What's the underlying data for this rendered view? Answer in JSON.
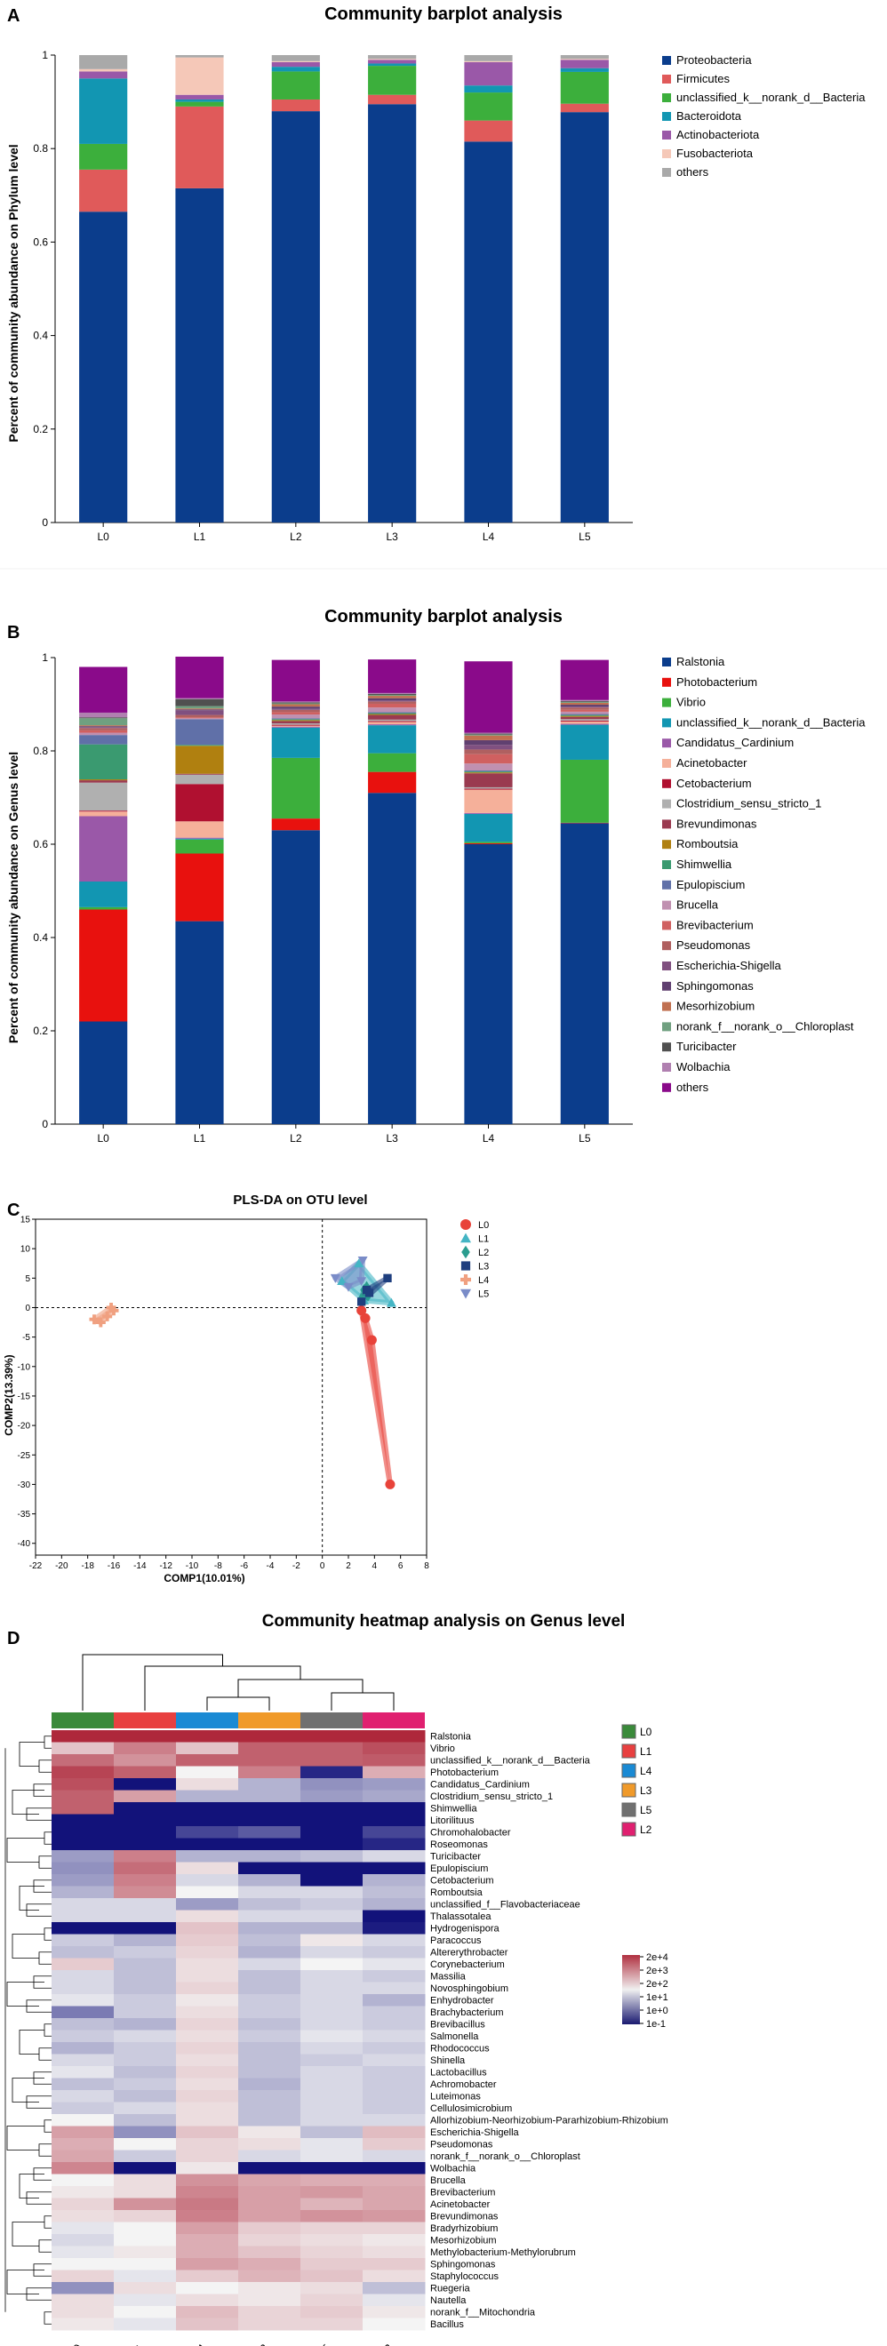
{
  "chart_data": [
    {
      "panel": "A",
      "type": "bar",
      "stacked": true,
      "title": "Community barplot analysis",
      "xlabel": "",
      "ylabel": "Percent of community abundance on Phylum level",
      "ylim": [
        0,
        1
      ],
      "yticks": [
        "0",
        "0.2",
        "0.4",
        "0.6",
        "0.8",
        "1"
      ],
      "categories": [
        "L0",
        "L1",
        "L2",
        "L3",
        "L4",
        "L5"
      ],
      "series": [
        {
          "name": "Proteobacteria",
          "color": "#0b3d8c",
          "values": [
            0.665,
            0.715,
            0.88,
            0.895,
            0.815,
            0.878
          ]
        },
        {
          "name": "Firmicutes",
          "color": "#e05a5a",
          "values": [
            0.09,
            0.175,
            0.025,
            0.02,
            0.045,
            0.018
          ]
        },
        {
          "name": "unclassified_k__norank_d__Bacteria",
          "color": "#3caf3c",
          "values": [
            0.055,
            0.01,
            0.06,
            0.062,
            0.06,
            0.068
          ]
        },
        {
          "name": "Bacteroidota",
          "color": "#1296b2",
          "values": [
            0.14,
            0.005,
            0.01,
            0.005,
            0.015,
            0.008
          ]
        },
        {
          "name": "Actinobacteriota",
          "color": "#9a58a8",
          "values": [
            0.015,
            0.01,
            0.01,
            0.008,
            0.05,
            0.018
          ]
        },
        {
          "name": "Fusobacteriota",
          "color": "#f5c8b8",
          "values": [
            0.005,
            0.08,
            0.002,
            0.002,
            0.002,
            0.002
          ]
        },
        {
          "name": "others",
          "color": "#a9a9a9",
          "values": [
            0.03,
            0.005,
            0.013,
            0.008,
            0.013,
            0.008
          ]
        }
      ]
    },
    {
      "panel": "B",
      "type": "bar",
      "stacked": true,
      "title": "Community barplot analysis",
      "xlabel": "",
      "ylabel": "Percent of community abundance on Genus level",
      "ylim": [
        0,
        1
      ],
      "yticks": [
        "0",
        "0.2",
        "0.4",
        "0.6",
        "0.8",
        "1"
      ],
      "categories": [
        "L0",
        "L1",
        "L2",
        "L3",
        "L4",
        "L5"
      ],
      "series": [
        {
          "name": "Ralstonia",
          "color": "#0b3d8c",
          "values": [
            0.22,
            0.435,
            0.63,
            0.71,
            0.6,
            0.645
          ]
        },
        {
          "name": "Photobacterium",
          "color": "#e8110e",
          "values": [
            0.24,
            0.145,
            0.025,
            0.045,
            0.002,
            0.001
          ]
        },
        {
          "name": "Vibrio",
          "color": "#3caf3c",
          "values": [
            0.005,
            0.03,
            0.13,
            0.04,
            0.003,
            0.135
          ]
        },
        {
          "name": "unclassified_k__norank_d__Bacteria",
          "color": "#1296b2",
          "values": [
            0.055,
            0.002,
            0.065,
            0.06,
            0.06,
            0.075
          ]
        },
        {
          "name": "Candidatus_Cardinium",
          "color": "#9a58a8",
          "values": [
            0.14,
            0.002,
            0.002,
            0.002,
            0.002,
            0.002
          ]
        },
        {
          "name": "Acinetobacter",
          "color": "#f5b09a",
          "values": [
            0.01,
            0.035,
            0.002,
            0.005,
            0.05,
            0.005
          ]
        },
        {
          "name": "Cetobacterium",
          "color": "#b01030",
          "values": [
            0.002,
            0.08,
            0.002,
            0.002,
            0.002,
            0.002
          ]
        },
        {
          "name": "Clostridium_sensu_stricto_1",
          "color": "#b0b0b0",
          "values": [
            0.06,
            0.02,
            0.003,
            0.003,
            0.003,
            0.003
          ]
        },
        {
          "name": "Brevundimonas",
          "color": "#9a3a50",
          "values": [
            0.005,
            0.002,
            0.005,
            0.01,
            0.03,
            0.005
          ]
        },
        {
          "name": "Romboutsia",
          "color": "#b08010",
          "values": [
            0.002,
            0.06,
            0.002,
            0.002,
            0.002,
            0.002
          ]
        },
        {
          "name": "Shimwellia",
          "color": "#3a9a70",
          "values": [
            0.075,
            0.002,
            0.002,
            0.002,
            0.002,
            0.002
          ]
        },
        {
          "name": "Epulopiscium",
          "color": "#6070a8",
          "values": [
            0.02,
            0.055,
            0.002,
            0.002,
            0.002,
            0.002
          ]
        },
        {
          "name": "Brucella",
          "color": "#c090b0",
          "values": [
            0.005,
            0.002,
            0.008,
            0.01,
            0.015,
            0.005
          ]
        },
        {
          "name": "Brevibacterium",
          "color": "#d06060",
          "values": [
            0.005,
            0.002,
            0.005,
            0.008,
            0.02,
            0.004
          ]
        },
        {
          "name": "Pseudomonas",
          "color": "#b06060",
          "values": [
            0.005,
            0.005,
            0.005,
            0.005,
            0.01,
            0.005
          ]
        },
        {
          "name": "Escherichia-Shigella",
          "color": "#805080",
          "values": [
            0.002,
            0.01,
            0.002,
            0.002,
            0.01,
            0.002
          ]
        },
        {
          "name": "Sphingomonas",
          "color": "#604070",
          "values": [
            0.002,
            0.002,
            0.005,
            0.005,
            0.01,
            0.004
          ]
        },
        {
          "name": "Mesorhizobium",
          "color": "#c07050",
          "values": [
            0.002,
            0.002,
            0.005,
            0.005,
            0.01,
            0.004
          ]
        },
        {
          "name": "norank_f__norank_o__Chloroplast",
          "color": "#70a080",
          "values": [
            0.015,
            0.005,
            0.002,
            0.002,
            0.002,
            0.002
          ]
        },
        {
          "name": "Turicibacter",
          "color": "#505050",
          "values": [
            0.002,
            0.015,
            0.002,
            0.002,
            0.002,
            0.002
          ]
        },
        {
          "name": "Wolbachia",
          "color": "#b080b0",
          "values": [
            0.01,
            0.002,
            0.002,
            0.002,
            0.002,
            0.002
          ]
        },
        {
          "name": "others",
          "color": "#8a0a8a",
          "values": [
            0.098,
            0.089,
            0.089,
            0.072,
            0.153,
            0.086
          ]
        }
      ]
    },
    {
      "panel": "C",
      "type": "scatter",
      "title": "PLS-DA on OTU level",
      "xlabel": "COMP1(10.01%)",
      "ylabel": "COMP2(13.39%)",
      "xlim": [
        -22,
        8
      ],
      "ylim": [
        -42,
        15
      ],
      "xticks": [
        -22,
        -20,
        -18,
        -16,
        -14,
        -12,
        -10,
        -8,
        -6,
        -4,
        -2,
        0,
        2,
        4,
        6,
        8
      ],
      "yticks": [
        15,
        10,
        5,
        0,
        -5,
        -10,
        -15,
        -20,
        -25,
        -30,
        -35,
        -40
      ],
      "series": [
        {
          "name": "L0",
          "color": "#e8433a",
          "marker": "circle",
          "points": [
            [
              3.0,
              -0.5
            ],
            [
              3.3,
              -1.8
            ],
            [
              3.8,
              -5.5
            ],
            [
              5.2,
              -30
            ]
          ]
        },
        {
          "name": "L1",
          "color": "#44b5c4",
          "marker": "triangle",
          "points": [
            [
              2.8,
              7.5
            ],
            [
              3.2,
              1.2
            ],
            [
              5.3,
              0.8
            ],
            [
              1.5,
              4.5
            ]
          ]
        },
        {
          "name": "L2",
          "color": "#2a9d8f",
          "marker": "diamond",
          "points": [
            [
              3.2,
              3.0
            ],
            [
              3.5,
              2.0
            ],
            [
              3.0,
              1.5
            ],
            [
              3.4,
              3.5
            ]
          ]
        },
        {
          "name": "L3",
          "color": "#1f3f7f",
          "marker": "square",
          "points": [
            [
              5.0,
              5.0
            ],
            [
              3.4,
              3.0
            ],
            [
              3.6,
              2.5
            ],
            [
              3.0,
              1.0
            ]
          ]
        },
        {
          "name": "L4",
          "color": "#f0a080",
          "marker": "plus",
          "points": [
            [
              -17.5,
              -2.0
            ],
            [
              -16.5,
              -1.5
            ],
            [
              -16.0,
              -0.5
            ],
            [
              -17.0,
              -2.5
            ],
            [
              -16.2,
              0.0
            ]
          ]
        },
        {
          "name": "L5",
          "color": "#7a8cc8",
          "marker": "triangle-down",
          "points": [
            [
              3.1,
              8.0
            ],
            [
              1.0,
              5.0
            ],
            [
              2.0,
              3.5
            ],
            [
              3.0,
              4.5
            ]
          ]
        }
      ]
    },
    {
      "panel": "D",
      "type": "heatmap",
      "title": "Community heatmap analysis on Genus level",
      "columns": [
        "L0",
        "L1",
        "L4",
        "L3",
        "L5",
        "L2"
      ],
      "column_colors": [
        "#3a8a3a",
        "#e84040",
        "#1a8ad4",
        "#f09a2a",
        "#707070",
        "#e02070"
      ],
      "colorbar": {
        "ticks": [
          "2e+4",
          "2e+3",
          "2e+2",
          "1e+1",
          "1e+0",
          "1e-1"
        ],
        "colors": [
          "#b03040",
          "#f0f0f0",
          "#1a1a70"
        ]
      },
      "rows": [
        "Ralstonia",
        "Vibrio",
        "unclassified_k__norank_d__Bacteria",
        "Photobacterium",
        "Candidatus_Cardinium",
        "Clostridium_sensu_stricto_1",
        "Shimwellia",
        "Litorilituus",
        "Chromohalobacter",
        "Roseomonas",
        "Turicibacter",
        "Epulopiscium",
        "Cetobacterium",
        "Romboutsia",
        "unclassified_f__Flavobacteriaceae",
        "Thalassotalea",
        "Hydrogenispora",
        "Paracoccus",
        "Altererythrobacter",
        "Corynebacterium",
        "Massilia",
        "Novosphingobium",
        "Enhydrobacter",
        "Brachybacterium",
        "Brevibacillus",
        "Salmonella",
        "Rhodococcus",
        "Shinella",
        "Lactobacillus",
        "Achromobacter",
        "Luteimonas",
        "Cellulosimicrobium",
        "Allorhizobium-Neorhizobium-Pararhizobium-Rhizobium",
        "Escherichia-Shigella",
        "Pseudomonas",
        "norank_f__norank_o__Chloroplast",
        "Wolbachia",
        "Brucella",
        "Brevibacterium",
        "Acinetobacter",
        "Brevundimonas",
        "Bradyrhizobium",
        "Mesorhizobium",
        "Methylobacterium-Methylorubrum",
        "Sphingomonas",
        "Staphylococcus",
        "Ruegeria",
        "Nautella",
        "norank_f__Mitochondria",
        "Bacillus"
      ],
      "values": [
        [
          4.0,
          4.0,
          4.0,
          4.0,
          4.0,
          4.0
        ],
        [
          1.5,
          2.5,
          1.5,
          3.0,
          3.0,
          3.3
        ],
        [
          2.8,
          2.2,
          3.0,
          3.0,
          3.0,
          3.1
        ],
        [
          3.5,
          3.0,
          1.0,
          2.5,
          -0.8,
          1.8
        ],
        [
          3.3,
          -1.0,
          1.2,
          0.5,
          0.2,
          0.3
        ],
        [
          3.0,
          2.0,
          0.5,
          0.5,
          0.3,
          0.4
        ],
        [
          3.0,
          -1.0,
          -1.0,
          -1.0,
          -1.0,
          -1.0
        ],
        [
          -1.0,
          -1.0,
          -1.0,
          -1.0,
          -1.0,
          -1.0
        ],
        [
          -1.0,
          -1.0,
          -0.5,
          -0.3,
          -1.0,
          -0.5
        ],
        [
          -1.0,
          -1.0,
          -1.0,
          -1.0,
          -1.0,
          -0.8
        ],
        [
          0.3,
          2.5,
          0.5,
          0.5,
          0.6,
          0.8
        ],
        [
          0.2,
          2.8,
          1.2,
          -1.0,
          -1.0,
          -1.0
        ],
        [
          0.3,
          2.5,
          0.8,
          0.5,
          -1.0,
          0.5
        ],
        [
          0.5,
          2.3,
          1.0,
          0.8,
          0.8,
          0.6
        ],
        [
          0.8,
          0.8,
          0.3,
          0.6,
          0.7,
          0.5
        ],
        [
          0.8,
          0.8,
          1.2,
          0.8,
          0.8,
          -1.0
        ],
        [
          -1.0,
          -1.0,
          1.5,
          0.5,
          0.5,
          -0.9
        ],
        [
          0.7,
          0.5,
          1.4,
          0.6,
          1.1,
          0.8
        ],
        [
          0.6,
          0.7,
          1.3,
          0.5,
          0.8,
          0.7
        ],
        [
          1.4,
          0.6,
          1.2,
          0.8,
          1.0,
          0.9
        ],
        [
          0.8,
          0.6,
          1.2,
          0.6,
          0.8,
          0.7
        ],
        [
          0.8,
          0.6,
          1.3,
          0.6,
          0.8,
          0.8
        ],
        [
          0.9,
          0.7,
          1.1,
          0.7,
          0.8,
          0.5
        ],
        [
          0.0,
          0.7,
          1.2,
          0.7,
          0.8,
          0.7
        ],
        [
          0.6,
          0.5,
          1.3,
          0.6,
          0.8,
          0.7
        ],
        [
          0.7,
          0.8,
          1.2,
          0.7,
          0.9,
          0.8
        ],
        [
          0.5,
          0.7,
          1.3,
          0.6,
          0.8,
          0.7
        ],
        [
          0.8,
          0.7,
          1.2,
          0.6,
          0.7,
          0.8
        ],
        [
          0.9,
          0.6,
          1.3,
          0.6,
          0.8,
          0.7
        ],
        [
          0.6,
          0.7,
          1.2,
          0.5,
          0.8,
          0.7
        ],
        [
          0.8,
          0.6,
          1.3,
          0.6,
          0.8,
          0.7
        ],
        [
          0.7,
          0.8,
          1.2,
          0.6,
          0.8,
          0.7
        ],
        [
          1.0,
          0.6,
          1.2,
          0.6,
          0.8,
          0.8
        ],
        [
          2.0,
          0.2,
          1.5,
          1.1,
          0.6,
          1.6
        ],
        [
          1.8,
          1.0,
          1.3,
          1.2,
          0.9,
          1.4
        ],
        [
          1.9,
          0.7,
          1.3,
          0.8,
          0.9,
          0.8
        ],
        [
          2.4,
          -1.0,
          1.1,
          -1.0,
          -1.0,
          -1.0
        ],
        [
          1.0,
          1.2,
          2.2,
          1.9,
          1.8,
          1.8
        ],
        [
          1.1,
          1.2,
          2.4,
          2.0,
          2.1,
          1.9
        ],
        [
          1.3,
          2.2,
          2.6,
          2.0,
          1.7,
          1.9
        ],
        [
          1.2,
          1.3,
          2.5,
          2.0,
          2.2,
          2.1
        ],
        [
          0.9,
          1.0,
          2.0,
          1.4,
          1.3,
          1.3
        ],
        [
          0.8,
          1.0,
          1.8,
          1.3,
          1.2,
          1.1
        ],
        [
          0.9,
          1.1,
          1.8,
          1.5,
          1.3,
          1.2
        ],
        [
          1.0,
          1.0,
          2.0,
          1.8,
          1.4,
          1.4
        ],
        [
          1.3,
          0.9,
          1.4,
          1.7,
          1.5,
          1.2
        ],
        [
          0.2,
          1.2,
          1.0,
          1.1,
          1.2,
          0.6
        ],
        [
          1.2,
          0.9,
          1.2,
          1.1,
          1.3,
          0.9
        ],
        [
          1.2,
          1.0,
          1.6,
          1.3,
          1.4,
          1.1
        ],
        [
          1.1,
          0.9,
          1.5,
          1.3,
          1.3,
          1.0
        ]
      ]
    }
  ],
  "panels": {
    "A": {
      "letter": "A"
    },
    "B": {
      "letter": "B"
    },
    "C": {
      "letter": "C"
    },
    "D": {
      "letter": "D"
    }
  }
}
